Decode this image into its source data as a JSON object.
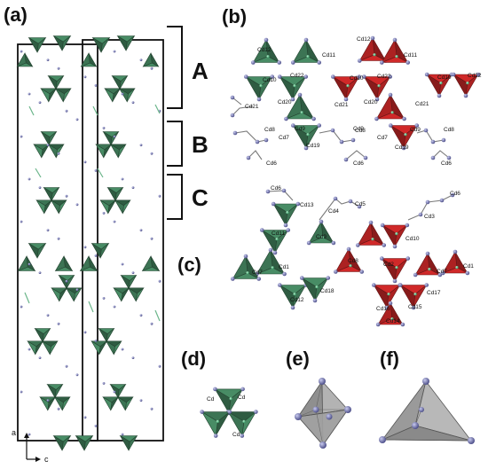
{
  "panels": {
    "a": "(a)",
    "b": "(b)",
    "c": "(c)",
    "d": "(d)",
    "e": "(e)",
    "f": "(f)"
  },
  "layers": {
    "A": "A",
    "B": "B",
    "C": "C"
  },
  "axes": {
    "a": "a",
    "c": "c"
  },
  "panel_b_labels": [
    "Cd12",
    "Cd11",
    "Cd12",
    "Cd11",
    "Cd10",
    "Cd22",
    "Cd10",
    "Cd22",
    "Cd10",
    "Cd22",
    "Cd21",
    "Cd20",
    "Cd21",
    "Cd20",
    "Cd21",
    "Cd9",
    "Cd8",
    "Cd7",
    "Cd9",
    "Cd8",
    "Cd7",
    "Cd9",
    "Cd8",
    "Cd19",
    "Cd19",
    "Cd6",
    "Cd6",
    "Cd6"
  ],
  "panel_c_labels": [
    "Cd6",
    "Cd13",
    "Cd4",
    "Cd5",
    "Cd6",
    "Cd3",
    "Cd11",
    "Cd9",
    "Cd10",
    "Cd7",
    "Cd1",
    "Cd8",
    "Cd2",
    "Cd7",
    "Cd1",
    "Cd18",
    "Cd12",
    "Cd17",
    "Cd16",
    "Cd15",
    "Cd14"
  ],
  "panel_d_labels": [
    "Cd",
    "Cd",
    "Cd"
  ],
  "colors": {
    "tet_green": "#3f7a58",
    "tet_green_dark": "#2a5a3d",
    "tet_red": "#b52424",
    "tet_red_dark": "#7a1414",
    "atom": "#6d6fa8",
    "octa_gray": "#9a9a9a"
  }
}
